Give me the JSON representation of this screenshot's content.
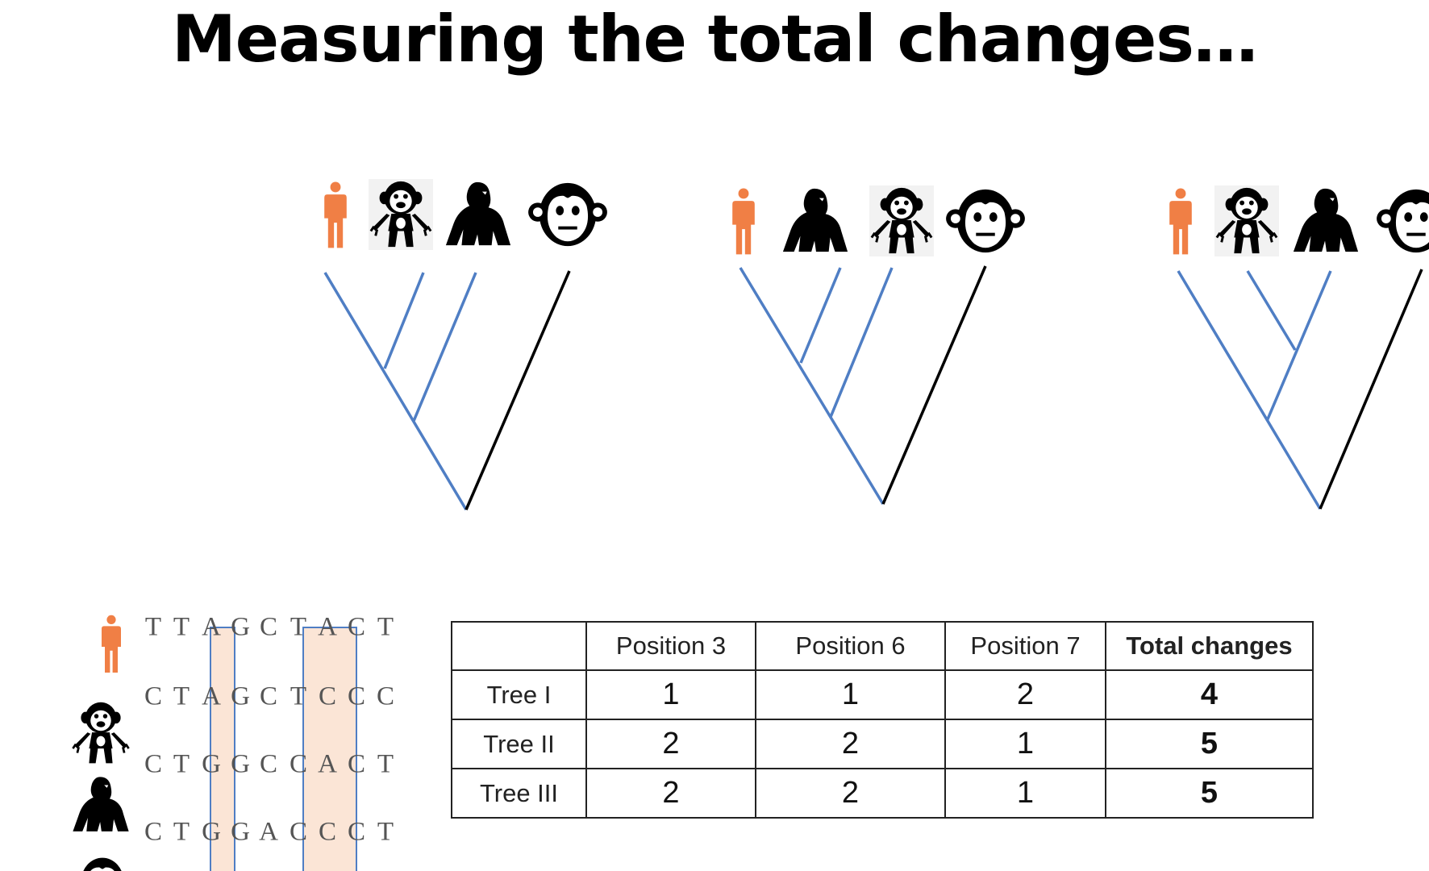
{
  "title": "Measuring the total changes…",
  "colors": {
    "human": "#f07f45",
    "primate": "#000000",
    "ingroup_branch": "#4f7ec4",
    "outgroup_branch": "#000000",
    "highlight_fill": "#fbe5d6",
    "highlight_border": "#4f7ec4"
  },
  "trees": [
    {
      "leaf_order": [
        "human-icon",
        "chimp-icon",
        "gorilla-icon",
        "monkey-icon"
      ]
    },
    {
      "leaf_order": [
        "human-icon",
        "gorilla-icon",
        "chimp-icon",
        "monkey-icon"
      ]
    },
    {
      "leaf_order": [
        "human-icon",
        "chimp-icon",
        "gorilla-icon",
        "monkey-icon"
      ]
    }
  ],
  "alignment": [
    {
      "icon": "human-icon",
      "seq": [
        "T",
        "T",
        "A",
        "G",
        "C",
        "T",
        "A",
        "C",
        "T"
      ]
    },
    {
      "icon": "chimp-icon",
      "seq": [
        "C",
        "T",
        "A",
        "G",
        "C",
        "T",
        "C",
        "C",
        "C"
      ]
    },
    {
      "icon": "gorilla-icon",
      "seq": [
        "C",
        "T",
        "G",
        "G",
        "C",
        "C",
        "A",
        "C",
        "T"
      ]
    },
    {
      "icon": "monkey-icon",
      "seq": [
        "C",
        "T",
        "G",
        "G",
        "A",
        "C",
        "C",
        "C",
        "T"
      ]
    }
  ],
  "table": {
    "headers": [
      "",
      "Position 3",
      "Position 6",
      "Position 7",
      "Total changes"
    ],
    "rows": [
      {
        "label": "Tree I",
        "values": [
          "1",
          "1",
          "2"
        ],
        "total": "4"
      },
      {
        "label": "Tree II",
        "values": [
          "2",
          "2",
          "1"
        ],
        "total": "5"
      },
      {
        "label": "Tree III",
        "values": [
          "2",
          "2",
          "1"
        ],
        "total": "5"
      }
    ]
  }
}
